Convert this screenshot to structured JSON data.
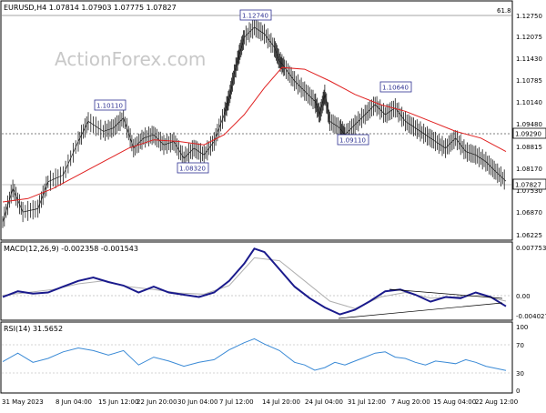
{
  "watermark": "ActionForex.com",
  "chart_data": [
    {
      "type": "candlestick",
      "title": "EURUSD,H4  1.07814 1.07903 1.07775 1.07827",
      "fib_label": "61.8",
      "y_ticks": [
        "1.12750",
        "1.12075",
        "1.11430",
        "1.10785",
        "1.10140",
        "1.09480",
        "1.08815",
        "1.08170",
        "1.07530",
        "1.06870",
        "1.06225"
      ],
      "ylim": [
        1.06225,
        1.1275
      ],
      "current_price": "1.07827",
      "level_price": "1.09290",
      "annotations": [
        {
          "label": "1.12740",
          "x": 0.495,
          "y": 1.1274
        },
        {
          "label": "1.10110",
          "x": 0.22,
          "y": 1.1011
        },
        {
          "label": "1.08320",
          "x": 0.36,
          "y": 1.0832
        },
        {
          "label": "1.09110",
          "x": 0.68,
          "y": 1.0911
        },
        {
          "label": "1.10640",
          "x": 0.78,
          "y": 1.1064
        }
      ],
      "price_path": [
        [
          0.0,
          1.066
        ],
        [
          0.02,
          1.076
        ],
        [
          0.04,
          1.069
        ],
        [
          0.07,
          1.07
        ],
        [
          0.09,
          1.078
        ],
        [
          0.12,
          1.08
        ],
        [
          0.15,
          1.09
        ],
        [
          0.17,
          1.096
        ],
        [
          0.2,
          1.093
        ],
        [
          0.22,
          1.094
        ],
        [
          0.24,
          1.097
        ],
        [
          0.26,
          1.088
        ],
        [
          0.28,
          1.091
        ],
        [
          0.3,
          1.092
        ],
        [
          0.32,
          1.089
        ],
        [
          0.34,
          1.09
        ],
        [
          0.36,
          1.085
        ],
        [
          0.38,
          1.088
        ],
        [
          0.4,
          1.086
        ],
        [
          0.42,
          1.09
        ],
        [
          0.44,
          1.098
        ],
        [
          0.45,
          1.103
        ],
        [
          0.46,
          1.11
        ],
        [
          0.47,
          1.116
        ],
        [
          0.48,
          1.121
        ],
        [
          0.5,
          1.124
        ],
        [
          0.52,
          1.122
        ],
        [
          0.54,
          1.118
        ],
        [
          0.55,
          1.114
        ],
        [
          0.56,
          1.112
        ],
        [
          0.58,
          1.108
        ],
        [
          0.6,
          1.105
        ],
        [
          0.62,
          1.102
        ],
        [
          0.63,
          1.098
        ],
        [
          0.64,
          1.104
        ],
        [
          0.65,
          1.096
        ],
        [
          0.67,
          1.094
        ],
        [
          0.68,
          1.092
        ],
        [
          0.7,
          1.095
        ],
        [
          0.72,
          1.098
        ],
        [
          0.74,
          1.101
        ],
        [
          0.76,
          1.098
        ],
        [
          0.78,
          1.1
        ],
        [
          0.8,
          1.096
        ],
        [
          0.82,
          1.094
        ],
        [
          0.84,
          1.092
        ],
        [
          0.86,
          1.09
        ],
        [
          0.88,
          1.088
        ],
        [
          0.9,
          1.091
        ],
        [
          0.92,
          1.087
        ],
        [
          0.94,
          1.086
        ],
        [
          0.96,
          1.084
        ],
        [
          0.98,
          1.081
        ],
        [
          1.0,
          1.0782
        ]
      ],
      "ma_path": [
        [
          0.0,
          1.072
        ],
        [
          0.05,
          1.073
        ],
        [
          0.1,
          1.076
        ],
        [
          0.15,
          1.08
        ],
        [
          0.2,
          1.084
        ],
        [
          0.25,
          1.088
        ],
        [
          0.3,
          1.0905
        ],
        [
          0.35,
          1.09
        ],
        [
          0.4,
          1.089
        ],
        [
          0.44,
          1.092
        ],
        [
          0.48,
          1.098
        ],
        [
          0.52,
          1.106
        ],
        [
          0.555,
          1.112
        ],
        [
          0.6,
          1.1115
        ],
        [
          0.65,
          1.108
        ],
        [
          0.7,
          1.104
        ],
        [
          0.75,
          1.101
        ],
        [
          0.8,
          1.099
        ],
        [
          0.85,
          1.096
        ],
        [
          0.9,
          1.093
        ],
        [
          0.95,
          1.091
        ],
        [
          1.0,
          1.087
        ]
      ]
    },
    {
      "type": "line",
      "title": "MACD(12,26,9) -0.002358 -0.001543",
      "y_ticks": [
        "0.007753",
        "0.00",
        "-0.004027"
      ],
      "ylim": [
        -0.0045,
        0.0078
      ],
      "series": [
        {
          "values": [
            [
              0.0,
              -0.0008
            ],
            [
              0.03,
              0.0002
            ],
            [
              0.06,
              -0.0002
            ],
            [
              0.09,
              0.0
            ],
            [
              0.12,
              0.001
            ],
            [
              0.15,
              0.002
            ],
            [
              0.18,
              0.0026
            ],
            [
              0.21,
              0.0018
            ],
            [
              0.24,
              0.0012
            ],
            [
              0.27,
              0.0
            ],
            [
              0.3,
              0.001
            ],
            [
              0.33,
              0.0
            ],
            [
              0.36,
              -0.0004
            ],
            [
              0.39,
              -0.0008
            ],
            [
              0.42,
              0.0
            ],
            [
              0.45,
              0.002
            ],
            [
              0.48,
              0.005
            ],
            [
              0.5,
              0.0076
            ],
            [
              0.52,
              0.007
            ],
            [
              0.55,
              0.004
            ],
            [
              0.58,
              0.001
            ],
            [
              0.61,
              -0.001
            ],
            [
              0.64,
              -0.0026
            ],
            [
              0.67,
              -0.0038
            ],
            [
              0.7,
              -0.003
            ],
            [
              0.73,
              -0.0015
            ],
            [
              0.76,
              0.0002
            ],
            [
              0.79,
              0.0005
            ],
            [
              0.82,
              -0.0004
            ],
            [
              0.85,
              -0.0016
            ],
            [
              0.88,
              -0.0008
            ],
            [
              0.91,
              -0.001
            ],
            [
              0.94,
              0.0
            ],
            [
              0.97,
              -0.0008
            ],
            [
              1.0,
              -0.0024
            ]
          ]
        },
        {
          "values": [
            [
              0.0,
              -0.0005
            ],
            [
              0.05,
              0.0
            ],
            [
              0.1,
              0.0005
            ],
            [
              0.15,
              0.0015
            ],
            [
              0.2,
              0.002
            ],
            [
              0.25,
              0.001
            ],
            [
              0.3,
              0.0005
            ],
            [
              0.35,
              -0.0001
            ],
            [
              0.4,
              -0.0003
            ],
            [
              0.45,
              0.0012
            ],
            [
              0.5,
              0.006
            ],
            [
              0.55,
              0.0055
            ],
            [
              0.6,
              0.002
            ],
            [
              0.65,
              -0.0015
            ],
            [
              0.7,
              -0.0028
            ],
            [
              0.75,
              -0.0008
            ],
            [
              0.8,
              0.0
            ],
            [
              0.85,
              -0.001
            ],
            [
              0.9,
              -0.0008
            ],
            [
              0.95,
              -0.0005
            ],
            [
              1.0,
              -0.0015
            ]
          ]
        }
      ]
    },
    {
      "type": "line",
      "title": "RSI(14) 31.5652",
      "y_ticks": [
        "100",
        "70",
        "30",
        "0"
      ],
      "ylim": [
        0,
        100
      ],
      "series": [
        {
          "values": [
            [
              0.0,
              45
            ],
            [
              0.03,
              58
            ],
            [
              0.06,
              44
            ],
            [
              0.09,
              50
            ],
            [
              0.12,
              60
            ],
            [
              0.15,
              66
            ],
            [
              0.18,
              62
            ],
            [
              0.21,
              55
            ],
            [
              0.24,
              62
            ],
            [
              0.27,
              40
            ],
            [
              0.3,
              52
            ],
            [
              0.33,
              46
            ],
            [
              0.36,
              38
            ],
            [
              0.39,
              44
            ],
            [
              0.42,
              48
            ],
            [
              0.45,
              63
            ],
            [
              0.48,
              74
            ],
            [
              0.5,
              80
            ],
            [
              0.52,
              72
            ],
            [
              0.55,
              62
            ],
            [
              0.58,
              44
            ],
            [
              0.6,
              40
            ],
            [
              0.62,
              32
            ],
            [
              0.64,
              36
            ],
            [
              0.66,
              44
            ],
            [
              0.68,
              40
            ],
            [
              0.7,
              46
            ],
            [
              0.72,
              52
            ],
            [
              0.74,
              58
            ],
            [
              0.76,
              60
            ],
            [
              0.78,
              52
            ],
            [
              0.8,
              50
            ],
            [
              0.82,
              44
            ],
            [
              0.84,
              40
            ],
            [
              0.86,
              46
            ],
            [
              0.88,
              44
            ],
            [
              0.9,
              42
            ],
            [
              0.92,
              48
            ],
            [
              0.94,
              44
            ],
            [
              0.96,
              38
            ],
            [
              1.0,
              31.57
            ]
          ]
        }
      ]
    }
  ],
  "x_axis": {
    "labels": [
      "31 May 2023",
      "8 Jun 04:00",
      "15 Jun 12:00",
      "22 Jun 20:00",
      "30 Jun 04:00",
      "7 Jul 12:00",
      "14 Jul 20:00",
      "24 Jul 04:00",
      "31 Jul 12:00",
      "7 Aug 20:00",
      "15 Aug 04:00",
      "22 Aug 12:00"
    ]
  }
}
